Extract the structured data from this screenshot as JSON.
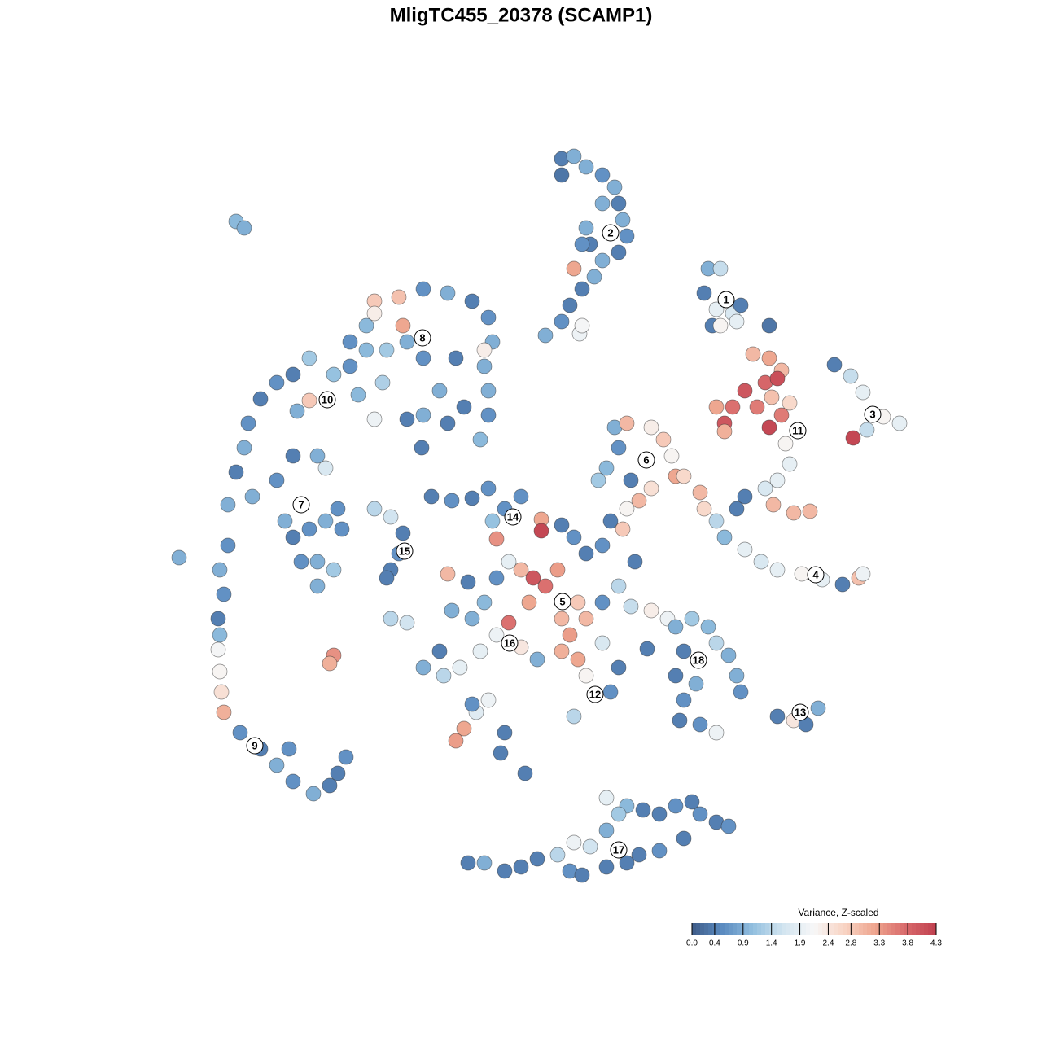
{
  "chart_data": {
    "type": "scatter",
    "title": "MligTC455_20378 (SCAMP1)",
    "xlim": [
      0,
      1280
    ],
    "ylim": [
      1280,
      0
    ],
    "x": [
      690,
      705,
      720,
      740,
      755,
      760,
      765,
      770,
      760,
      740,
      725,
      720,
      715,
      730,
      715,
      705,
      700,
      690,
      670,
      712,
      715,
      690,
      740,
      290,
      300,
      870,
      885,
      865,
      880,
      900,
      910,
      875,
      885,
      905,
      945,
      925,
      945,
      960,
      940,
      915,
      930,
      900,
      880,
      890,
      945,
      960,
      970,
      965,
      970,
      955,
      940,
      950,
      975,
      995,
      890,
      948,
      955,
      1025,
      1045,
      1060,
      1085,
      1105,
      1065,
      1048,
      860,
      865,
      880,
      890,
      915,
      935,
      955,
      985,
      1010,
      1035,
      1055,
      1060,
      915,
      905,
      755,
      770,
      760,
      745,
      775,
      800,
      815,
      825,
      830,
      800,
      785,
      770,
      840,
      735,
      460,
      490,
      520,
      550,
      580,
      600,
      605,
      595,
      600,
      600,
      590,
      570,
      540,
      520,
      500,
      495,
      475,
      450,
      430,
      410,
      380,
      360,
      340,
      320,
      305,
      300,
      290,
      280,
      310,
      340,
      360,
      390,
      400,
      365,
      380,
      440,
      460,
      470,
      430,
      450,
      560,
      550,
      520,
      595,
      500,
      518,
      460,
      350,
      360,
      380,
      400,
      420,
      390,
      370,
      390,
      410,
      415,
      280,
      270,
      275,
      268,
      270,
      268,
      270,
      272,
      275,
      295,
      320,
      340,
      360,
      385,
      405,
      425,
      415,
      355,
      220,
      410,
      405,
      460,
      480,
      495,
      490,
      480,
      475,
      530,
      555,
      580,
      600,
      620,
      640,
      665,
      665,
      690,
      705,
      720,
      740,
      750,
      765,
      780,
      760,
      740,
      720,
      700,
      690,
      710,
      720,
      740,
      760,
      750,
      705,
      685,
      670,
      655,
      650,
      640,
      625,
      610,
      595,
      580,
      555,
      540,
      520,
      545,
      565,
      590,
      610,
      625,
      640,
      660,
      605,
      610,
      480,
      500,
      550,
      575,
      690,
      710,
      800,
      820,
      775,
      795,
      600,
      585,
      570,
      560,
      620,
      615,
      645,
      580,
      830,
      850,
      870,
      880,
      840,
      830,
      840,
      835,
      860,
      880,
      895,
      905,
      910,
      855,
      955,
      975,
      990,
      1005,
      575,
      595,
      620,
      660,
      685,
      700,
      715,
      725,
      745,
      745,
      770,
      790,
      810,
      830,
      850,
      860,
      880,
      895,
      840,
      810,
      785,
      770,
      745,
      705,
      760,
      640
    ],
    "y": [
      195,
      192,
      205,
      215,
      230,
      250,
      270,
      290,
      310,
      320,
      300,
      280,
      300,
      340,
      355,
      330,
      375,
      395,
      412,
      410,
      400,
      215,
      250,
      272,
      280,
      330,
      330,
      360,
      380,
      385,
      375,
      400,
      400,
      395,
      400,
      435,
      440,
      455,
      470,
      480,
      500,
      500,
      500,
      520,
      525,
      510,
      495,
      545,
      570,
      590,
      600,
      620,
      630,
      628,
      530,
      488,
      465,
      448,
      462,
      482,
      512,
      520,
      528,
      538,
      605,
      625,
      640,
      660,
      675,
      690,
      700,
      705,
      712,
      718,
      710,
      705,
      610,
      625,
      525,
      520,
      550,
      575,
      590,
      525,
      540,
      560,
      585,
      600,
      615,
      625,
      585,
      590,
      370,
      365,
      355,
      360,
      370,
      390,
      420,
      450,
      480,
      510,
      540,
      500,
      480,
      440,
      420,
      400,
      430,
      430,
      450,
      460,
      440,
      460,
      470,
      490,
      520,
      550,
      580,
      620,
      610,
      590,
      560,
      560,
      575,
      505,
      492,
      485,
      515,
      470,
      420,
      400,
      440,
      520,
      510,
      430,
      515,
      550,
      385,
      640,
      660,
      650,
      640,
      650,
      690,
      690,
      720,
      700,
      625,
      670,
      700,
      730,
      760,
      780,
      798,
      825,
      850,
      875,
      900,
      920,
      940,
      960,
      975,
      965,
      930,
      950,
      920,
      685,
      805,
      815,
      625,
      635,
      655,
      680,
      700,
      710,
      610,
      615,
      612,
      600,
      625,
      610,
      638,
      652,
      645,
      660,
      680,
      670,
      640,
      650,
      690,
      720,
      740,
      760,
      780,
      800,
      810,
      830,
      790,
      820,
      850,
      880,
      700,
      720,
      710,
      740,
      700,
      690,
      710,
      740,
      760,
      750,
      800,
      820,
      830,
      820,
      800,
      780,
      765,
      795,
      810,
      640,
      662,
      760,
      765,
      705,
      715,
      760,
      740,
      750,
      760,
      745,
      797,
      860,
      875,
      895,
      910,
      900,
      925,
      950,
      865,
      770,
      760,
      770,
      790,
      800,
      830,
      860,
      885,
      890,
      900,
      805,
      830,
      850,
      840,
      880,
      885,
      890,
      870,
      1060,
      1060,
      1070,
      1055,
      1050,
      1070,
      1075,
      1040,
      1020,
      980,
      990,
      995,
      1000,
      990,
      985,
      1000,
      1010,
      1015,
      1030,
      1045,
      1050,
      1060,
      1065,
      1035,
      1000,
      1065
    ],
    "values": [
      0.4,
      0.9,
      0.9,
      0.6,
      0.9,
      0.4,
      0.9,
      0.6,
      0.4,
      0.9,
      0.4,
      0.9,
      0.6,
      0.9,
      0.4,
      3.2,
      0.4,
      0.6,
      0.9,
      2.0,
      2.1,
      0.3,
      0.9,
      1.0,
      0.9,
      0.9,
      1.5,
      0.4,
      1.9,
      1.7,
      0.4,
      0.4,
      2.2,
      1.9,
      0.3,
      3.0,
      3.2,
      3.0,
      3.8,
      4.0,
      3.6,
      3.7,
      3.2,
      4.0,
      4.2,
      3.6,
      2.6,
      2.2,
      1.9,
      1.9,
      1.7,
      3.0,
      3.0,
      3.0,
      3.1,
      2.9,
      4.1,
      0.4,
      1.5,
      1.9,
      2.2,
      1.9,
      1.5,
      4.2,
      3.0,
      2.6,
      1.4,
      1.0,
      1.9,
      1.7,
      1.9,
      2.2,
      1.9,
      0.4,
      2.9,
      2.0,
      0.4,
      0.4,
      0.9,
      3.0,
      0.6,
      1.0,
      0.4,
      2.3,
      2.8,
      2.2,
      3.2,
      2.5,
      3.0,
      2.2,
      2.6,
      1.2,
      2.8,
      2.9,
      0.6,
      0.9,
      0.4,
      0.6,
      0.9,
      0.9,
      0.9,
      0.6,
      1.0,
      0.4,
      0.9,
      0.6,
      0.9,
      3.2,
      1.2,
      1.0,
      0.6,
      1.1,
      1.2,
      0.4,
      0.6,
      0.4,
      0.6,
      0.9,
      0.4,
      0.9,
      0.9,
      0.6,
      0.4,
      0.9,
      1.7,
      0.9,
      2.8,
      1.0,
      2.0,
      1.3,
      0.6,
      1.0,
      0.4,
      0.4,
      0.9,
      2.3,
      0.4,
      0.4,
      2.3,
      0.9,
      0.4,
      0.6,
      0.9,
      0.6,
      0.9,
      0.6,
      0.9,
      1.2,
      0.6,
      0.6,
      0.9,
      0.6,
      0.4,
      1.0,
      2.1,
      2.2,
      2.5,
      3.1,
      0.6,
      0.4,
      0.9,
      0.6,
      0.9,
      0.4,
      0.6,
      0.4,
      0.6,
      0.9,
      3.4,
      3.1,
      1.4,
      1.6,
      0.4,
      0.6,
      0.4,
      0.4,
      0.4,
      0.6,
      0.4,
      0.6,
      0.6,
      0.6,
      3.2,
      4.2,
      0.4,
      0.6,
      0.4,
      0.6,
      0.4,
      2.8,
      0.4,
      1.4,
      0.6,
      3.0,
      3.3,
      3.1,
      3.2,
      2.2,
      1.7,
      0.4,
      0.6,
      1.4,
      3.3,
      3.7,
      4.0,
      3.2,
      3.0,
      1.9,
      0.6,
      1.0,
      0.9,
      0.9,
      0.4,
      0.9,
      1.4,
      1.9,
      1.9,
      2.0,
      3.7,
      2.4,
      0.9,
      1.1,
      3.4,
      1.4,
      1.6,
      3.0,
      0.4,
      3.0,
      2.8,
      2.3,
      2.0,
      1.5,
      0.4,
      2.0,
      1.8,
      3.2,
      3.3,
      0.4,
      0.4,
      0.4,
      0.6,
      0.9,
      1.2,
      1.0,
      1.4,
      0.4,
      0.4,
      0.6,
      0.4,
      0.6,
      2.0,
      0.9,
      0.9,
      0.6,
      0.9,
      0.4,
      2.4,
      0.4,
      0.9,
      0.4,
      0.9,
      0.4,
      0.4,
      1.4,
      0.6,
      0.4,
      1.6,
      0.9,
      1.9,
      1.0,
      0.4,
      0.4,
      0.6,
      0.4,
      0.6,
      0.4,
      0.6,
      0.4,
      0.6,
      0.4,
      0.4,
      0.4,
      2.0,
      1.2,
      0.4
    ],
    "annotations": [
      {
        "text": "1",
        "x": 892,
        "y": 368
      },
      {
        "text": "2",
        "x": 750,
        "y": 286
      },
      {
        "text": "3",
        "x": 1072,
        "y": 509
      },
      {
        "text": "4",
        "x": 1002,
        "y": 706
      },
      {
        "text": "5",
        "x": 691,
        "y": 739
      },
      {
        "text": "6",
        "x": 794,
        "y": 565
      },
      {
        "text": "7",
        "x": 370,
        "y": 620
      },
      {
        "text": "8",
        "x": 519,
        "y": 415
      },
      {
        "text": "9",
        "x": 313,
        "y": 916
      },
      {
        "text": "10",
        "x": 402,
        "y": 491
      },
      {
        "text": "11",
        "x": 980,
        "y": 529
      },
      {
        "text": "12",
        "x": 731,
        "y": 853
      },
      {
        "text": "13",
        "x": 983,
        "y": 875
      },
      {
        "text": "14",
        "x": 630,
        "y": 635
      },
      {
        "text": "15",
        "x": 497,
        "y": 677
      },
      {
        "text": "16",
        "x": 626,
        "y": 790
      },
      {
        "text": "17",
        "x": 760,
        "y": 1044
      },
      {
        "text": "18",
        "x": 858,
        "y": 811
      }
    ],
    "colorbar": {
      "title": "Variance, Z-scaled",
      "lim": [
        0,
        4.3
      ],
      "ticks": [
        {
          "value": 0,
          "label": "0.0"
        },
        0.4,
        0.9,
        1.4,
        1.9,
        2.4,
        2.8,
        3.3,
        3.8,
        4.3
      ],
      "colors": [
        "#3e5c88",
        "#5b8bc0",
        "#93c0df",
        "#d3e5f0",
        "#f7f7f7",
        "#f8d3c3",
        "#eea58e",
        "#d8696b",
        "#c0404f"
      ]
    }
  }
}
